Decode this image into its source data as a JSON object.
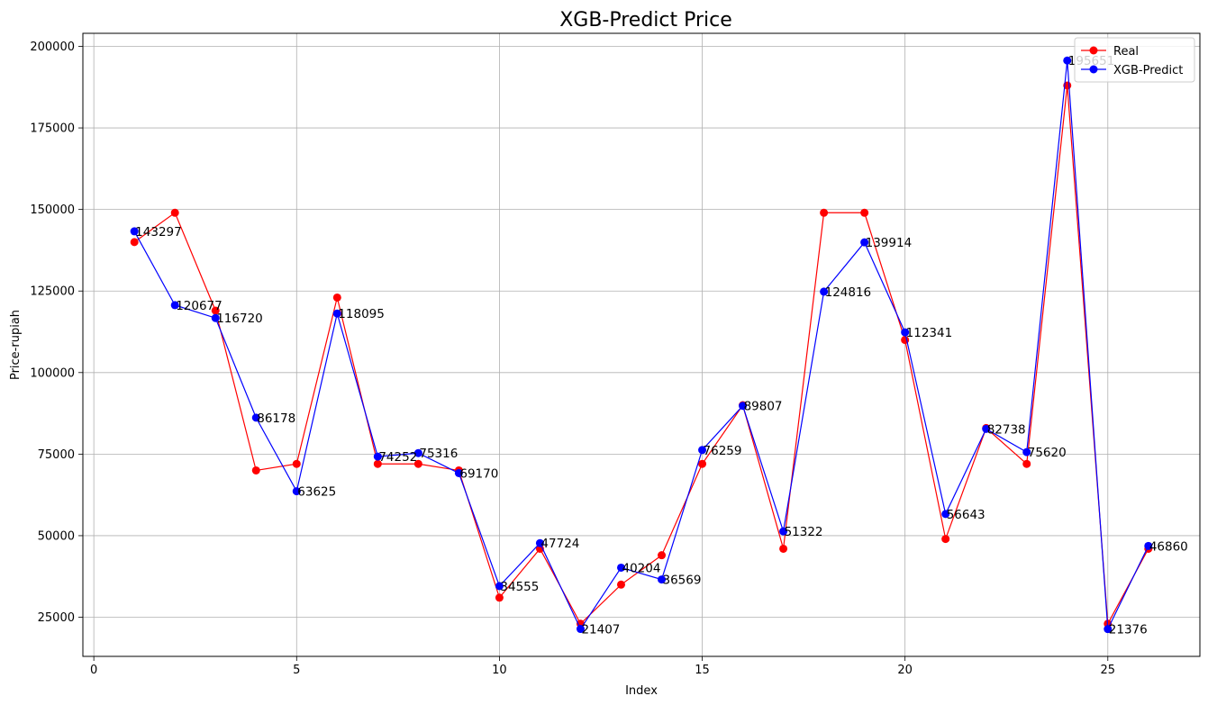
{
  "chart_data": {
    "type": "line",
    "title": "XGB-Predict Price",
    "xlabel": "Index",
    "ylabel": "Price-rupiah",
    "xlim": [
      -0.27,
      27.27
    ],
    "ylim": [
      13000,
      204000
    ],
    "xticks": [
      0,
      5,
      10,
      15,
      20,
      25
    ],
    "yticks": [
      25000,
      50000,
      75000,
      100000,
      125000,
      150000,
      175000,
      200000
    ],
    "grid": true,
    "legend_position": "top-right",
    "x": [
      1,
      2,
      3,
      4,
      5,
      6,
      7,
      8,
      9,
      10,
      11,
      12,
      13,
      14,
      15,
      16,
      17,
      18,
      19,
      20,
      21,
      22,
      23,
      24,
      25,
      26
    ],
    "series": [
      {
        "name": "Real",
        "color": "#ff0000",
        "values": [
          140000,
          149000,
          119000,
          70000,
          72000,
          123000,
          72000,
          72000,
          70000,
          31000,
          46000,
          23000,
          35000,
          44000,
          72000,
          90000,
          46000,
          149000,
          149000,
          110000,
          49000,
          83000,
          72000,
          188000,
          23000,
          46000
        ]
      },
      {
        "name": "XGB-Predict",
        "color": "#0000ff",
        "values": [
          143297,
          120677,
          116720,
          86178,
          63625,
          118095,
          74252,
          75316,
          69170,
          34555,
          47724,
          21407,
          40204,
          36569,
          76259,
          89807,
          51322,
          124816,
          139914,
          112341,
          56643,
          82738,
          75620,
          195651,
          21376,
          46860
        ]
      }
    ],
    "annotations": [
      "143297",
      "120677",
      "116720",
      "86178",
      "63625",
      "118095",
      "74252",
      "75316",
      "69170",
      "34555",
      "47724",
      "21407",
      "40204",
      "36569",
      "76259",
      "89807",
      "51322",
      "124816",
      "139914",
      "112341",
      "56643",
      "82738",
      "75620",
      "195651",
      "21376",
      "46860"
    ]
  }
}
